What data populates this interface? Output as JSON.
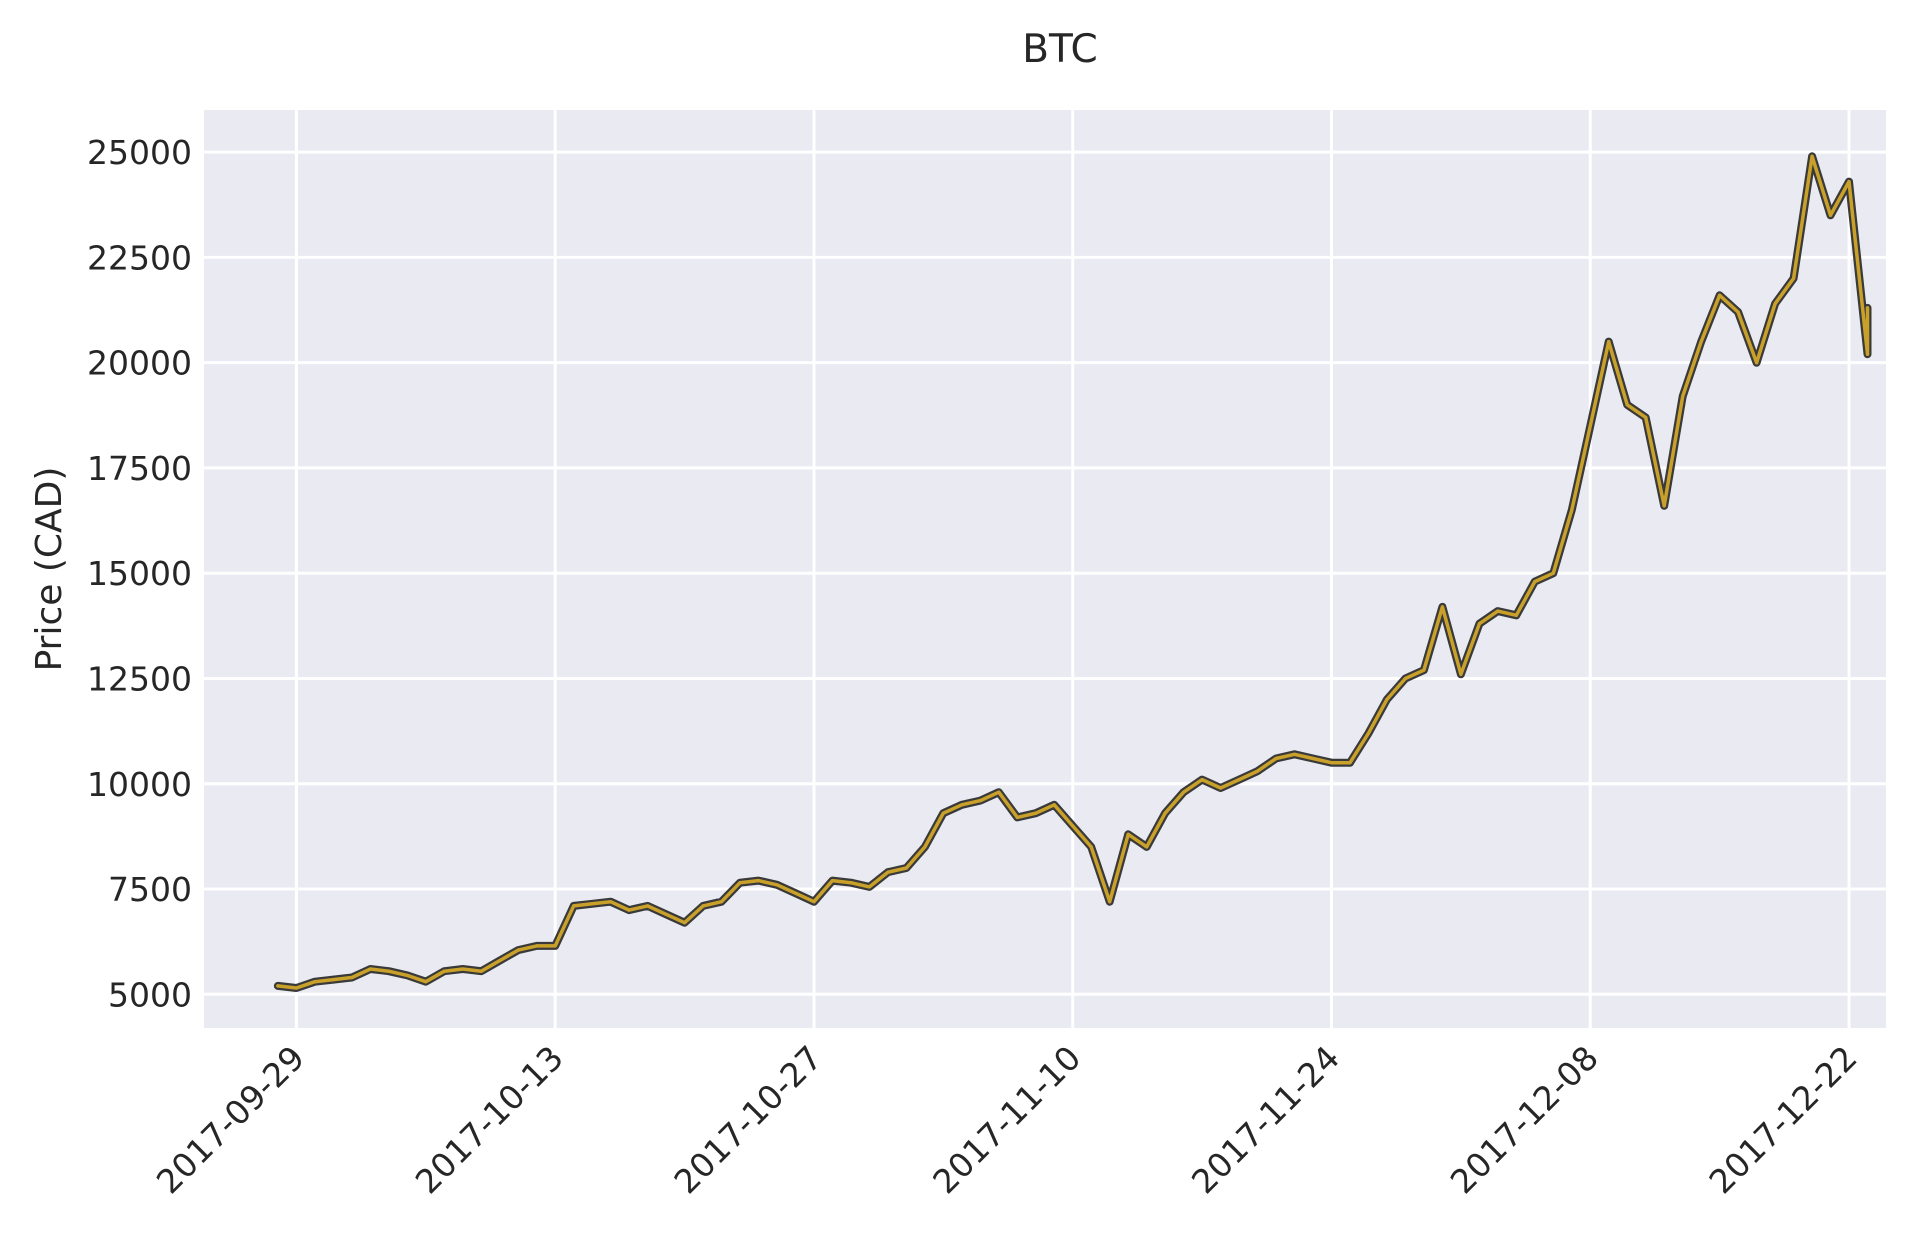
{
  "chart_data": {
    "type": "line",
    "title": "BTC",
    "xlabel": "",
    "ylabel": "Price (CAD)",
    "x_type": "date",
    "xlim": [
      "2017-09-24",
      "2017-12-24"
    ],
    "ylim": [
      4200,
      26000
    ],
    "x_ticks": [
      "2017-09-29",
      "2017-10-13",
      "2017-10-27",
      "2017-11-10",
      "2017-11-24",
      "2017-12-08",
      "2017-12-22"
    ],
    "y_ticks": [
      5000,
      7500,
      10000,
      12500,
      15000,
      17500,
      20000,
      22500,
      25000
    ],
    "grid": true,
    "legend": "none",
    "line_color": "#c9a12a",
    "edge_color": "#3a3a3a",
    "background_color": "#eaeaf2",
    "series": [
      {
        "points": [
          [
            "2017-09-28",
            5200
          ],
          [
            "2017-09-29",
            5150
          ],
          [
            "2017-09-30",
            5300
          ],
          [
            "2017-10-01",
            5350
          ],
          [
            "2017-10-02",
            5400
          ],
          [
            "2017-10-03",
            5600
          ],
          [
            "2017-10-04",
            5550
          ],
          [
            "2017-10-05",
            5450
          ],
          [
            "2017-10-06",
            5300
          ],
          [
            "2017-10-07",
            5550
          ],
          [
            "2017-10-08",
            5600
          ],
          [
            "2017-10-09",
            5550
          ],
          [
            "2017-10-10",
            5800
          ],
          [
            "2017-10-11",
            6050
          ],
          [
            "2017-10-12",
            6150
          ],
          [
            "2017-10-13",
            6150
          ],
          [
            "2017-10-14",
            7100
          ],
          [
            "2017-10-15",
            7150
          ],
          [
            "2017-10-16",
            7200
          ],
          [
            "2017-10-17",
            7000
          ],
          [
            "2017-10-18",
            7100
          ],
          [
            "2017-10-19",
            6900
          ],
          [
            "2017-10-20",
            6700
          ],
          [
            "2017-10-21",
            7100
          ],
          [
            "2017-10-22",
            7200
          ],
          [
            "2017-10-23",
            7650
          ],
          [
            "2017-10-24",
            7700
          ],
          [
            "2017-10-25",
            7600
          ],
          [
            "2017-10-26",
            7400
          ],
          [
            "2017-10-27",
            7200
          ],
          [
            "2017-10-28",
            7700
          ],
          [
            "2017-10-29",
            7650
          ],
          [
            "2017-10-30",
            7550
          ],
          [
            "2017-10-31",
            7900
          ],
          [
            "2017-11-01",
            8000
          ],
          [
            "2017-11-02",
            8500
          ],
          [
            "2017-11-03",
            9300
          ],
          [
            "2017-11-04",
            9500
          ],
          [
            "2017-11-05",
            9600
          ],
          [
            "2017-11-06",
            9800
          ],
          [
            "2017-11-07",
            9200
          ],
          [
            "2017-11-08",
            9300
          ],
          [
            "2017-11-09",
            9500
          ],
          [
            "2017-11-10",
            9000
          ],
          [
            "2017-11-11",
            8500
          ],
          [
            "2017-11-12",
            7200
          ],
          [
            "2017-11-13",
            8800
          ],
          [
            "2017-11-14",
            8500
          ],
          [
            "2017-11-15",
            9300
          ],
          [
            "2017-11-16",
            9800
          ],
          [
            "2017-11-17",
            10100
          ],
          [
            "2017-11-18",
            9900
          ],
          [
            "2017-11-19",
            10100
          ],
          [
            "2017-11-20",
            10300
          ],
          [
            "2017-11-21",
            10600
          ],
          [
            "2017-11-22",
            10700
          ],
          [
            "2017-11-23",
            10600
          ],
          [
            "2017-11-24",
            10500
          ],
          [
            "2017-11-25",
            10500
          ],
          [
            "2017-11-26",
            11200
          ],
          [
            "2017-11-27",
            12000
          ],
          [
            "2017-11-28",
            12500
          ],
          [
            "2017-11-29",
            12700
          ],
          [
            "2017-11-30",
            14200
          ],
          [
            "2017-12-01",
            12600
          ],
          [
            "2017-12-02",
            13800
          ],
          [
            "2017-12-03",
            14100
          ],
          [
            "2017-12-04",
            14000
          ],
          [
            "2017-12-05",
            14800
          ],
          [
            "2017-12-06",
            15000
          ],
          [
            "2017-12-07",
            16500
          ],
          [
            "2017-12-08",
            18500
          ],
          [
            "2017-12-09",
            20500
          ],
          [
            "2017-12-10",
            19000
          ],
          [
            "2017-12-11",
            18700
          ],
          [
            "2017-12-12",
            16600
          ],
          [
            "2017-12-13",
            19200
          ],
          [
            "2017-12-14",
            20500
          ],
          [
            "2017-12-15",
            21600
          ],
          [
            "2017-12-16",
            21200
          ],
          [
            "2017-12-17",
            20000
          ],
          [
            "2017-12-18",
            21400
          ],
          [
            "2017-12-19",
            22000
          ],
          [
            "2017-12-20",
            24900
          ],
          [
            "2017-12-21",
            23500
          ],
          [
            "2017-12-22",
            24300
          ],
          [
            "2017-12-23",
            20200
          ],
          [
            "2017-12-23",
            21300
          ]
        ]
      }
    ]
  }
}
